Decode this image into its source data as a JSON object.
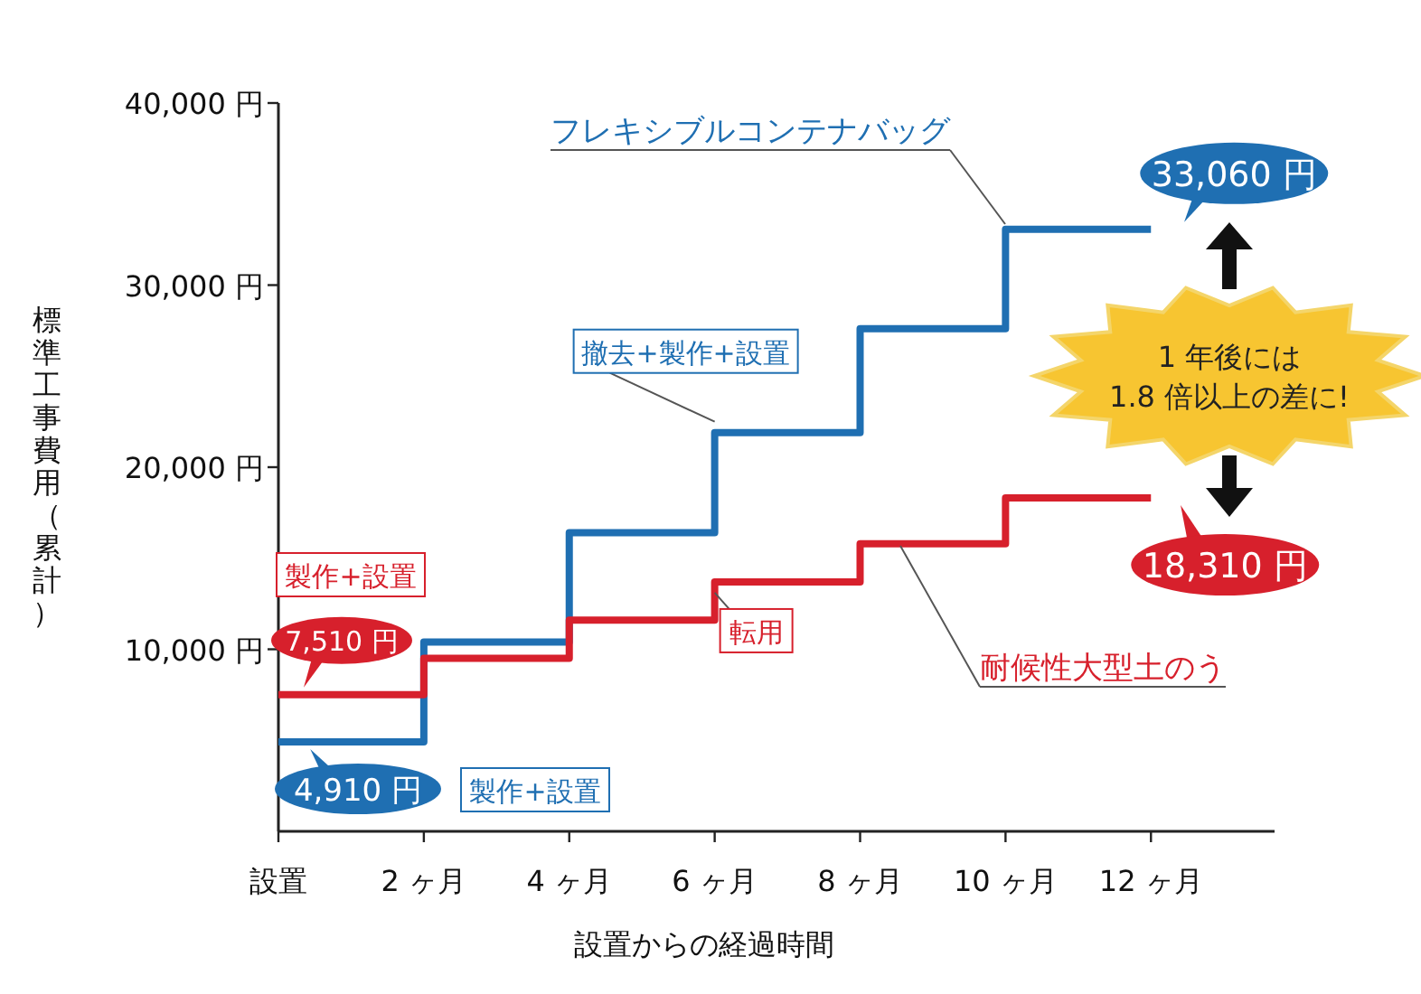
{
  "chart_data": {
    "type": "step",
    "x": [
      0,
      2,
      4,
      6,
      8,
      10,
      12
    ],
    "series": [
      {
        "name": "フレキシブルコンテナバッグ",
        "color": "#1f6fb2",
        "values": [
          4910,
          10400,
          16400,
          21900,
          27600,
          33060,
          33060
        ],
        "value_labels": [
          "4,910 円",
          null,
          null,
          null,
          null,
          null,
          "33,060 円"
        ]
      },
      {
        "name": "耐候性大型土のう",
        "color": "#d7202c",
        "values": [
          7510,
          9500,
          11600,
          13700,
          15800,
          18310,
          18310
        ],
        "value_labels": [
          "7,510 円",
          null,
          null,
          null,
          null,
          null,
          "18,310 円"
        ]
      }
    ],
    "xlim": [
      0,
      13.7
    ],
    "xticks": [
      {
        "value": 0,
        "label": "設置"
      },
      {
        "value": 2,
        "label": "2 ヶ月"
      },
      {
        "value": 4,
        "label": "4 ヶ月"
      },
      {
        "value": 6,
        "label": "6 ヶ月"
      },
      {
        "value": 8,
        "label": "8 ヶ月"
      },
      {
        "value": 10,
        "label": "10 ヶ月"
      },
      {
        "value": 12,
        "label": "12 ヶ月"
      }
    ],
    "ylim": [
      0,
      40000
    ],
    "yticks": [
      {
        "value": 10000,
        "label": "10,000 円"
      },
      {
        "value": 20000,
        "label": "20,000 円"
      },
      {
        "value": 30000,
        "label": "30,000 円"
      },
      {
        "value": 40000,
        "label": "40,000 円"
      }
    ],
    "xlabel": "設置からの経過時間",
    "ylabel": "標準工事費用（累計）",
    "annotations": [
      "製作+設置",
      "製作+設置",
      {
        "text": "撤去+製作+設置",
        "x": 6,
        "y": 21900
      },
      {
        "text": "転用",
        "x": 6,
        "y": 13700
      },
      "1 年後には\n1.8 倍以上の差に!"
    ]
  }
}
